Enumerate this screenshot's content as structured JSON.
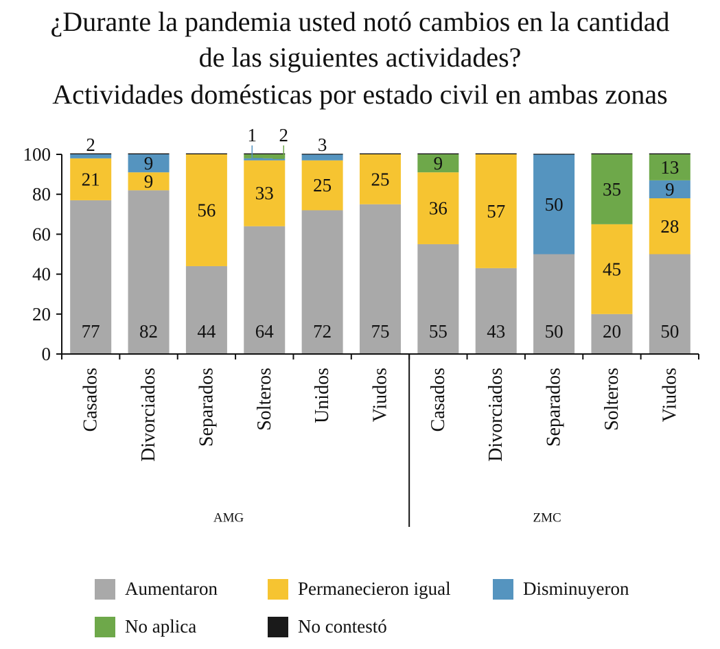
{
  "title_lines": [
    "¿Durante la pandemia usted notó cambios en la cantidad",
    "de las siguientes actividades?",
    "Actividades domésticas por estado civil en ambas zonas"
  ],
  "colors": {
    "aumentaron": "#a9a9a9",
    "permanecieron": "#f6c431",
    "disminuyeron": "#5594bf",
    "no_aplica": "#6ea84a",
    "no_contesto": "#1a1a1a"
  },
  "chart_data": {
    "type": "bar",
    "stacked": true,
    "title": "¿Durante la pandemia usted notó cambios en la cantidad de las siguientes actividades? Actividades domésticas por estado civil en ambas zonas",
    "ylim": [
      0,
      100
    ],
    "yticks": [
      "0",
      "20",
      "40",
      "60",
      "80",
      "100"
    ],
    "groups": [
      "AMG",
      "ZMC"
    ],
    "categories": [
      "Casados",
      "Divorciados",
      "Separados",
      "Solteros",
      "Unidos",
      "Viudos",
      "Casados",
      "Divorciados",
      "Separados",
      "Solteros",
      "Viudos"
    ],
    "category_group": [
      "AMG",
      "AMG",
      "AMG",
      "AMG",
      "AMG",
      "AMG",
      "ZMC",
      "ZMC",
      "ZMC",
      "ZMC",
      "ZMC"
    ],
    "series": [
      {
        "name": "Aumentaron",
        "values": [
          77,
          82,
          44,
          64,
          72,
          75,
          55,
          43,
          50,
          20,
          50
        ]
      },
      {
        "name": "Permanecieron igual",
        "values": [
          21,
          9,
          56,
          33,
          25,
          25,
          36,
          57,
          0,
          45,
          28
        ]
      },
      {
        "name": "Disminuyeron",
        "values": [
          2,
          9,
          0,
          1,
          3,
          0,
          0,
          0,
          50,
          0,
          9
        ]
      },
      {
        "name": "No aplica",
        "values": [
          0,
          0,
          0,
          2,
          0,
          0,
          9,
          0,
          0,
          35,
          13
        ]
      },
      {
        "name": "No contestó",
        "values": [
          0.5,
          0.5,
          0.5,
          0.5,
          0.3,
          0.5,
          0.5,
          0.5,
          0.3,
          0.5,
          0.5
        ]
      }
    ],
    "labels": [
      [
        "77",
        "21",
        "2",
        "",
        ""
      ],
      [
        "82",
        "9",
        "9",
        "",
        ""
      ],
      [
        "44",
        "56",
        "",
        "",
        ""
      ],
      [
        "64",
        "33",
        "1",
        "2",
        ""
      ],
      [
        "72",
        "25",
        "3",
        "",
        ""
      ],
      [
        "75",
        "25",
        "",
        "",
        ""
      ],
      [
        "55",
        "36",
        "",
        "9",
        ""
      ],
      [
        "43",
        "57",
        "",
        "",
        ""
      ],
      [
        "50",
        "",
        "50",
        "",
        ""
      ],
      [
        "20",
        "45",
        "",
        "35",
        ""
      ],
      [
        "50",
        "28",
        "9",
        "13",
        ""
      ]
    ],
    "legend": [
      "Aumentaron",
      "Permanecieron igual",
      "Disminuyeron",
      "No aplica",
      "No contestó"
    ],
    "legend_position": "bottom",
    "grid": false
  }
}
